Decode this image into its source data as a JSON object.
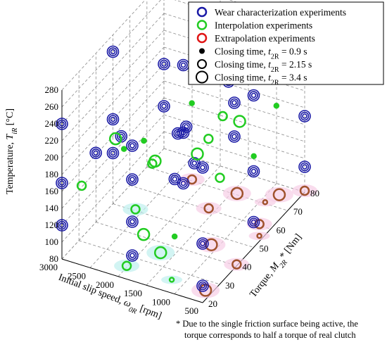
{
  "chart_data": {
    "type": "scatter3d",
    "axes": {
      "x": {
        "label": "Initial slip speed, ω0R [rpm]",
        "label_main": "Initial slip speed, ",
        "label_sym": "ω",
        "label_sub": "0R",
        "label_unit": " [rpm]",
        "range": [
          3000,
          500
        ],
        "ticks": [
          3000,
          2500,
          2000,
          1500,
          1000,
          500
        ]
      },
      "y": {
        "label": "Torque, M2R* [Nm]",
        "label_main": "Torque, ",
        "label_sym": "M",
        "label_sub": "2R",
        "label_unit": "* [Nm]",
        "range": [
          20,
          80
        ],
        "ticks": [
          20,
          30,
          40,
          50,
          60,
          70,
          80
        ]
      },
      "z": {
        "label": "Temperature, TiR [°C]",
        "label_main": "Temperature, ",
        "label_sym": "T",
        "label_sub": "iR",
        "label_unit": " [°C]",
        "range": [
          80,
          280
        ],
        "ticks": [
          80,
          100,
          120,
          140,
          160,
          180,
          200,
          220,
          240,
          260,
          280
        ]
      }
    },
    "grid": true,
    "legend": {
      "placement": "top-right",
      "entries": [
        {
          "label": "Wear characterization experiments",
          "color": "#1a1aa6"
        },
        {
          "label": "Interpolation experiments",
          "color": "#22cc22"
        },
        {
          "label": "Extrapolation experiments",
          "color": "#e01515"
        },
        {
          "label_main": "Closing time, ",
          "label_sym": "t",
          "label_sub": "2R",
          "label_val": " = 0.9 s",
          "size": 0.9
        },
        {
          "label_main": "Closing time, ",
          "label_sym": "t",
          "label_sub": "2R",
          "label_val": " = 2.15 s",
          "size": 2.15
        },
        {
          "label_main": "Closing time, ",
          "label_sym": "t",
          "label_sub": "2R",
          "label_val": " = 3.4 s",
          "size": 3.4
        }
      ]
    },
    "footnote": [
      "* Due to the single friction surface being active, the",
      "torque corresponds to half a torque of real clutch"
    ],
    "series": [
      {
        "name": "Wear characterization experiments",
        "color": "#1a1aa6",
        "concentric": true,
        "points": [
          {
            "x": 3000,
            "y": 20,
            "z": 240
          },
          {
            "x": 3000,
            "y": 20,
            "z": 170
          },
          {
            "x": 3000,
            "y": 20,
            "z": 120
          },
          {
            "x": 1750,
            "y": 20,
            "z": 240
          },
          {
            "x": 1750,
            "y": 20,
            "z": 200
          },
          {
            "x": 1750,
            "y": 20,
            "z": 150
          },
          {
            "x": 1750,
            "y": 20,
            "z": 110
          },
          {
            "x": 500,
            "y": 20,
            "z": 240
          },
          {
            "x": 500,
            "y": 20,
            "z": 150
          },
          {
            "x": 500,
            "y": 20,
            "z": 100
          },
          {
            "x": 3000,
            "y": 50,
            "z": 260
          },
          {
            "x": 3000,
            "y": 50,
            "z": 180
          },
          {
            "x": 3000,
            "y": 50,
            "z": 140
          },
          {
            "x": 1750,
            "y": 50,
            "z": 270
          },
          {
            "x": 1750,
            "y": 50,
            "z": 190
          },
          {
            "x": 1750,
            "y": 50,
            "z": 130
          },
          {
            "x": 500,
            "y": 50,
            "z": 260
          },
          {
            "x": 500,
            "y": 50,
            "z": 170
          },
          {
            "x": 500,
            "y": 50,
            "z": 110
          },
          {
            "x": 3000,
            "y": 80,
            "z": 270
          },
          {
            "x": 3000,
            "y": 80,
            "z": 180
          },
          {
            "x": 3000,
            "y": 80,
            "z": 130
          },
          {
            "x": 1750,
            "y": 80,
            "z": 250
          },
          {
            "x": 1750,
            "y": 80,
            "z": 160
          },
          {
            "x": 1750,
            "y": 80,
            "z": 120
          },
          {
            "x": 500,
            "y": 80,
            "z": 260
          },
          {
            "x": 500,
            "y": 80,
            "z": 170
          },
          {
            "x": 500,
            "y": 80,
            "z": 110
          },
          {
            "x": 2400,
            "y": 35,
            "z": 205
          },
          {
            "x": 1100,
            "y": 35,
            "z": 200
          },
          {
            "x": 1400,
            "y": 65,
            "z": 225
          },
          {
            "x": 2300,
            "y": 65,
            "z": 145
          },
          {
            "x": 2700,
            "y": 30,
            "z": 190
          },
          {
            "x": 1600,
            "y": 40,
            "z": 160
          },
          {
            "x": 2000,
            "y": 60,
            "z": 170
          }
        ]
      },
      {
        "name": "Interpolation experiments",
        "color": "#22cc22",
        "concentric": false,
        "points": [
          {
            "x": 2200,
            "y": 30,
            "z": 205
          },
          {
            "x": 2000,
            "y": 40,
            "z": 170
          },
          {
            "x": 1700,
            "y": 25,
            "z": 125
          },
          {
            "x": 1300,
            "y": 30,
            "z": 120
          },
          {
            "x": 1000,
            "y": 40,
            "z": 220
          },
          {
            "x": 900,
            "y": 55,
            "z": 210
          },
          {
            "x": 800,
            "y": 60,
            "z": 160
          },
          {
            "x": 1200,
            "y": 55,
            "z": 210
          },
          {
            "x": 2500,
            "y": 35,
            "z": 200
          },
          {
            "x": 2300,
            "y": 45,
            "z": 180
          },
          {
            "x": 2800,
            "y": 25,
            "z": 160
          },
          {
            "x": 1500,
            "y": 50,
            "z": 170
          },
          {
            "x": 700,
            "y": 70,
            "z": 200
          },
          {
            "x": 1100,
            "y": 50,
            "z": 150
          },
          {
            "x": 2100,
            "y": 45,
            "z": 160
          },
          {
            "x": 1900,
            "y": 60,
            "z": 200
          }
        ]
      },
      {
        "name": "Extrapolation experiments",
        "color": "#e01515",
        "concentric": false,
        "points": [
          {
            "x": 3000,
            "y": 80,
            "z": 280
          },
          {
            "x": 2700,
            "y": 80,
            "z": 280
          },
          {
            "x": 2300,
            "y": 80,
            "z": 280
          },
          {
            "x": 1800,
            "y": 80,
            "z": 270
          },
          {
            "x": 1200,
            "y": 80,
            "z": 260
          },
          {
            "x": 500,
            "y": 80,
            "z": 220
          }
        ]
      }
    ],
    "projections": [
      {
        "x": 2000,
        "y": 25,
        "color": "#22cc22",
        "size": 2.15
      },
      {
        "x": 1700,
        "y": 35,
        "color": "#22cc22",
        "size": 3.4
      },
      {
        "x": 1200,
        "y": 25,
        "color": "#22cc22",
        "size": 0.9
      },
      {
        "x": 600,
        "y": 25,
        "color": "#a0522d",
        "size": 3.4
      },
      {
        "x": 1100,
        "y": 45,
        "color": "#a0522d",
        "size": 3.4
      },
      {
        "x": 700,
        "y": 60,
        "color": "#a0522d",
        "size": 2.15
      },
      {
        "x": 550,
        "y": 55,
        "color": "#a0522d",
        "size": 0.9
      },
      {
        "x": 1600,
        "y": 60,
        "color": "#a0522d",
        "size": 2.15
      },
      {
        "x": 1400,
        "y": 70,
        "color": "#a0522d",
        "size": 3.4
      },
      {
        "x": 800,
        "y": 75,
        "color": "#a0522d",
        "size": 3.4
      },
      {
        "x": 500,
        "y": 80,
        "color": "#a0522d",
        "size": 2.15
      },
      {
        "x": 900,
        "y": 70,
        "color": "#a0522d",
        "size": 0.9
      },
      {
        "x": 2200,
        "y": 70,
        "color": "#a0522d",
        "size": 2.15
      },
      {
        "x": 2600,
        "y": 50,
        "color": "#22cc22",
        "size": 2.15
      },
      {
        "x": 500,
        "y": 40,
        "color": "#a0522d",
        "size": 2.15
      }
    ]
  }
}
